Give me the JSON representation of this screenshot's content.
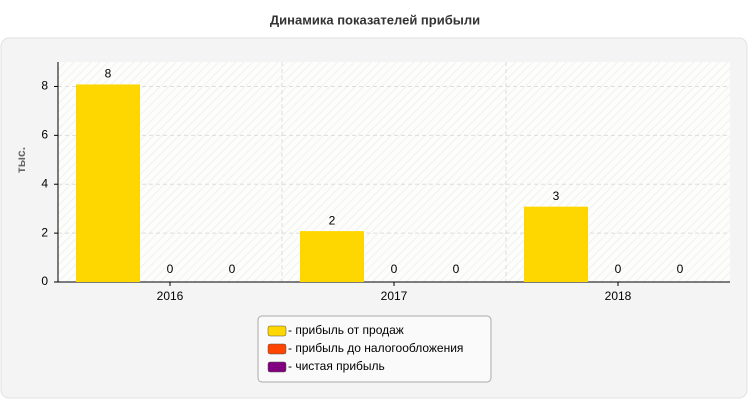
{
  "chart_data": {
    "type": "bar",
    "title": "Динамика показателей прибыли",
    "y_label": "тыс.",
    "categories": [
      "2016",
      "2017",
      "2018"
    ],
    "series": [
      {
        "name": "- прибыль от продаж",
        "color": "#ffd700",
        "values": [
          8,
          2,
          3
        ]
      },
      {
        "name": "- прибыль до налогообложения",
        "color": "#ff4500",
        "values": [
          0,
          0,
          0
        ]
      },
      {
        "name": "- чистая прибыль",
        "color": "#800080",
        "values": [
          0,
          0,
          0
        ]
      }
    ],
    "ylim": [
      0,
      9
    ],
    "yticks": [
      0,
      2,
      4,
      6,
      8
    ],
    "grid": true
  }
}
